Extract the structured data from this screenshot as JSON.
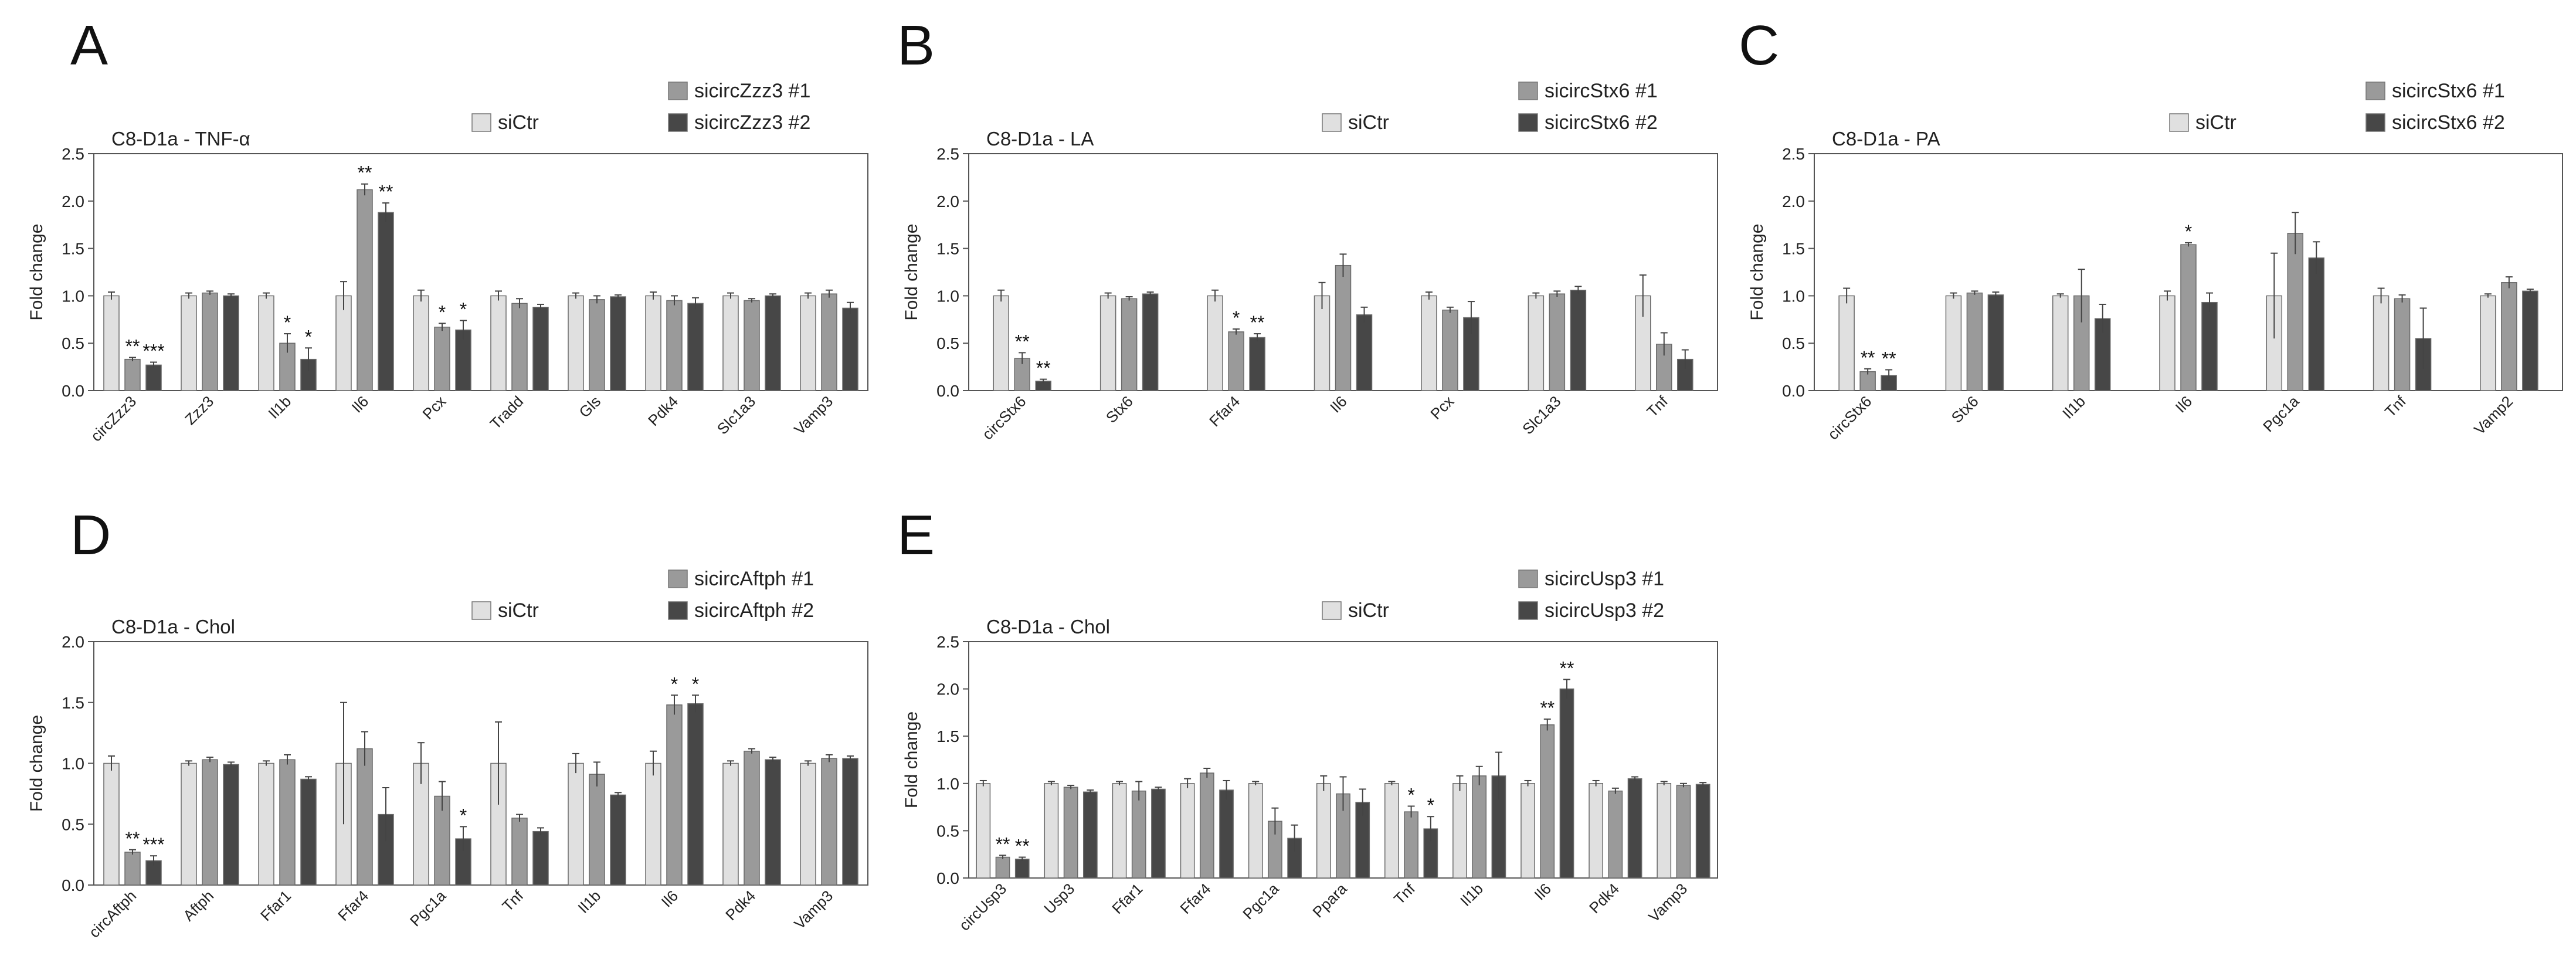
{
  "colors": {
    "siCtr": "#e0e0e0",
    "si1": "#9a9a9a",
    "si2": "#474747",
    "axis": "#555555",
    "text": "#222222"
  },
  "chart_data": [
    {
      "panel": "A",
      "type": "bar",
      "title": "C8-D1a - TNF-α",
      "ylabel": "Fold change",
      "xlabel": "",
      "ylim": [
        0,
        2.5
      ],
      "yticks": [
        "0.0",
        "0.5",
        "1.0",
        "1.5",
        "2.0",
        "2.5"
      ],
      "legend": [
        "siCtr",
        "sicircZzz3 #1",
        "sicircZzz3 #2"
      ],
      "categories": [
        "circZzz3",
        "Zzz3",
        "Il1b",
        "Il6",
        "Pcx",
        "Tradd",
        "Gls",
        "Pdk4",
        "Slc1a3",
        "Vamp3"
      ],
      "series": [
        {
          "name": "siCtr",
          "values": [
            1.0,
            1.0,
            1.0,
            1.0,
            1.0,
            1.0,
            1.0,
            1.0,
            1.0,
            1.0
          ],
          "errors": [
            0.04,
            0.03,
            0.03,
            0.15,
            0.06,
            0.05,
            0.03,
            0.04,
            0.03,
            0.03
          ]
        },
        {
          "name": "sicircZzz3 #1",
          "values": [
            0.33,
            1.03,
            0.5,
            2.12,
            0.67,
            0.92,
            0.96,
            0.95,
            0.95,
            1.02
          ],
          "errors": [
            0.02,
            0.02,
            0.1,
            0.06,
            0.04,
            0.05,
            0.04,
            0.05,
            0.02,
            0.04
          ]
        },
        {
          "name": "sicircZzz3 #2",
          "values": [
            0.27,
            1.0,
            0.33,
            1.88,
            0.64,
            0.88,
            0.99,
            0.92,
            1.0,
            0.87
          ]
        }
      ],
      "errors2": [
        0.03,
        0.02,
        0.12,
        0.1,
        0.1,
        0.03,
        0.02,
        0.06,
        0.02,
        0.06
      ],
      "annotations": [
        {
          "category": "circZzz3",
          "series": 1,
          "label": "**"
        },
        {
          "category": "circZzz3",
          "series": 2,
          "label": "***"
        },
        {
          "category": "Il1b",
          "series": 1,
          "label": "*"
        },
        {
          "category": "Il1b",
          "series": 2,
          "label": "*"
        },
        {
          "category": "Il6",
          "series": 1,
          "label": "**"
        },
        {
          "category": "Il6",
          "series": 2,
          "label": "**"
        },
        {
          "category": "Pcx",
          "series": 1,
          "label": "*"
        },
        {
          "category": "Pcx",
          "series": 2,
          "label": "*"
        }
      ]
    },
    {
      "panel": "B",
      "type": "bar",
      "title": "C8-D1a - LA",
      "ylabel": "Fold change",
      "xlabel": "",
      "ylim": [
        0,
        2.5
      ],
      "yticks": [
        "0.0",
        "0.5",
        "1.0",
        "1.5",
        "2.0",
        "2.5"
      ],
      "legend": [
        "siCtr",
        "sicircStx6 #1",
        "sicircStx6 #2"
      ],
      "categories": [
        "circStx6",
        "Stx6",
        "Ffar4",
        "Il6",
        "Pcx",
        "Slc1a3",
        "Tnf"
      ],
      "series": [
        {
          "name": "siCtr",
          "values": [
            1.0,
            1.0,
            1.0,
            1.0,
            1.0,
            1.0,
            1.0
          ],
          "errors": [
            0.06,
            0.03,
            0.06,
            0.14,
            0.04,
            0.03,
            0.22
          ]
        },
        {
          "name": "sicircStx6 #1",
          "values": [
            0.34,
            0.97,
            0.62,
            1.32,
            0.85,
            1.02,
            0.49
          ],
          "errors": [
            0.06,
            0.02,
            0.03,
            0.12,
            0.03,
            0.03,
            0.12
          ]
        },
        {
          "name": "sicircStx6 #2",
          "values": [
            0.1,
            1.02,
            0.56,
            0.8,
            0.77,
            1.06,
            0.33
          ]
        }
      ],
      "errors2": [
        0.02,
        0.02,
        0.04,
        0.08,
        0.17,
        0.04,
        0.1
      ],
      "annotations": [
        {
          "category": "circStx6",
          "series": 1,
          "label": "**"
        },
        {
          "category": "circStx6",
          "series": 2,
          "label": "**"
        },
        {
          "category": "Ffar4",
          "series": 1,
          "label": "*"
        },
        {
          "category": "Ffar4",
          "series": 2,
          "label": "**"
        }
      ]
    },
    {
      "panel": "C",
      "type": "bar",
      "title": "C8-D1a - PA",
      "ylabel": "Fold change",
      "xlabel": "",
      "ylim": [
        0,
        2.5
      ],
      "yticks": [
        "0.0",
        "0.5",
        "1.0",
        "1.5",
        "2.0",
        "2.5"
      ],
      "legend": [
        "siCtr",
        "sicircStx6 #1",
        "sicircStx6 #2"
      ],
      "categories": [
        "circStx6",
        "Stx6",
        "Il1b",
        "Il6",
        "Pgc1a",
        "Tnf",
        "Vamp2"
      ],
      "series": [
        {
          "name": "siCtr",
          "values": [
            1.0,
            1.0,
            1.0,
            1.0,
            1.0,
            1.0,
            1.0
          ],
          "errors": [
            0.08,
            0.03,
            0.02,
            0.05,
            0.45,
            0.08,
            0.02
          ]
        },
        {
          "name": "sicircStx6 #1",
          "values": [
            0.2,
            1.03,
            1.0,
            1.54,
            1.66,
            0.97,
            1.14
          ],
          "errors": [
            0.03,
            0.02,
            0.28,
            0.02,
            0.22,
            0.04,
            0.06
          ]
        },
        {
          "name": "sicircStx6 #2",
          "values": [
            0.16,
            1.01,
            0.76,
            0.93,
            1.4,
            0.55,
            1.05
          ]
        }
      ],
      "errors2": [
        0.06,
        0.03,
        0.15,
        0.1,
        0.17,
        0.32,
        0.02
      ],
      "annotations": [
        {
          "category": "circStx6",
          "series": 1,
          "label": "**"
        },
        {
          "category": "circStx6",
          "series": 2,
          "label": "**"
        },
        {
          "category": "Il6",
          "series": 1,
          "label": "*"
        }
      ]
    },
    {
      "panel": "D",
      "type": "bar",
      "title": "C8-D1a - Chol",
      "ylabel": "Fold change",
      "xlabel": "",
      "ylim": [
        0,
        2.0
      ],
      "yticks": [
        "0.0",
        "0.5",
        "1.0",
        "1.5",
        "2.0"
      ],
      "legend": [
        "siCtr",
        "sicircAftph #1",
        "sicircAftph #2"
      ],
      "categories": [
        "circAftph",
        "Aftph",
        "Ffar1",
        "Ffar4",
        "Pgc1a",
        "Tnf",
        "Il1b",
        "Il6",
        "Pdk4",
        "Vamp3"
      ],
      "series": [
        {
          "name": "siCtr",
          "values": [
            1.0,
            1.0,
            1.0,
            1.0,
            1.0,
            1.0,
            1.0,
            1.0,
            1.0,
            1.0
          ],
          "errors": [
            0.06,
            0.02,
            0.02,
            0.5,
            0.17,
            0.34,
            0.08,
            0.1,
            0.02,
            0.02
          ]
        },
        {
          "name": "sicircAftph #1",
          "values": [
            0.27,
            1.03,
            1.03,
            1.12,
            0.73,
            0.55,
            0.91,
            1.48,
            1.1,
            1.04
          ],
          "errors": [
            0.02,
            0.02,
            0.04,
            0.14,
            0.12,
            0.03,
            0.1,
            0.08,
            0.02,
            0.03
          ]
        },
        {
          "name": "sicircAftph #2",
          "values": [
            0.2,
            0.99,
            0.87,
            0.58,
            0.38,
            0.44,
            0.74,
            1.49,
            1.03,
            1.04
          ]
        }
      ],
      "errors2": [
        0.04,
        0.02,
        0.02,
        0.22,
        0.1,
        0.03,
        0.02,
        0.07,
        0.02,
        0.02
      ],
      "annotations": [
        {
          "category": "circAftph",
          "series": 1,
          "label": "**"
        },
        {
          "category": "circAftph",
          "series": 2,
          "label": "***"
        },
        {
          "category": "Pgc1a",
          "series": 2,
          "label": "*"
        },
        {
          "category": "Il6",
          "series": 1,
          "label": "*"
        },
        {
          "category": "Il6",
          "series": 2,
          "label": "*"
        }
      ]
    },
    {
      "panel": "E",
      "type": "bar",
      "title": "C8-D1a - Chol",
      "ylabel": "Fold change",
      "xlabel": "",
      "ylim": [
        0,
        2.5
      ],
      "yticks": [
        "0.0",
        "0.5",
        "1.0",
        "1.5",
        "2.0",
        "2.5"
      ],
      "legend": [
        "siCtr",
        "sicircUsp3 #1",
        "sicircUsp3 #2"
      ],
      "categories": [
        "circUsp3",
        "Usp3",
        "Ffar1",
        "Ffar4",
        "Pgc1a",
        "Ppara",
        "Tnf",
        "Il1b",
        "Il6",
        "Pdk4",
        "Vamp3"
      ],
      "series": [
        {
          "name": "siCtr",
          "values": [
            1.0,
            1.0,
            1.0,
            1.0,
            1.0,
            1.0,
            1.0,
            1.0,
            1.0,
            1.0,
            1.0
          ],
          "errors": [
            0.03,
            0.02,
            0.02,
            0.05,
            0.02,
            0.08,
            0.02,
            0.08,
            0.03,
            0.03,
            0.02
          ]
        },
        {
          "name": "sicircUsp3 #1",
          "values": [
            0.22,
            0.96,
            0.92,
            1.11,
            0.6,
            0.89,
            0.7,
            1.08,
            1.62,
            0.92,
            0.98
          ],
          "errors": [
            0.02,
            0.02,
            0.1,
            0.05,
            0.14,
            0.18,
            0.06,
            0.1,
            0.06,
            0.03,
            0.02
          ]
        },
        {
          "name": "sicircUsp3 #2",
          "values": [
            0.2,
            0.91,
            0.94,
            0.93,
            0.42,
            0.8,
            0.52,
            1.08,
            2.0,
            1.05,
            0.99
          ]
        }
      ],
      "errors2": [
        0.02,
        0.02,
        0.02,
        0.1,
        0.14,
        0.14,
        0.13,
        0.25,
        0.1,
        0.02,
        0.02
      ],
      "annotations": [
        {
          "category": "circUsp3",
          "series": 1,
          "label": "**"
        },
        {
          "category": "circUsp3",
          "series": 2,
          "label": "**"
        },
        {
          "category": "Tnf",
          "series": 1,
          "label": "*"
        },
        {
          "category": "Tnf",
          "series": 2,
          "label": "*"
        },
        {
          "category": "Il6",
          "series": 1,
          "label": "**"
        },
        {
          "category": "Il6",
          "series": 2,
          "label": "**"
        }
      ]
    }
  ]
}
